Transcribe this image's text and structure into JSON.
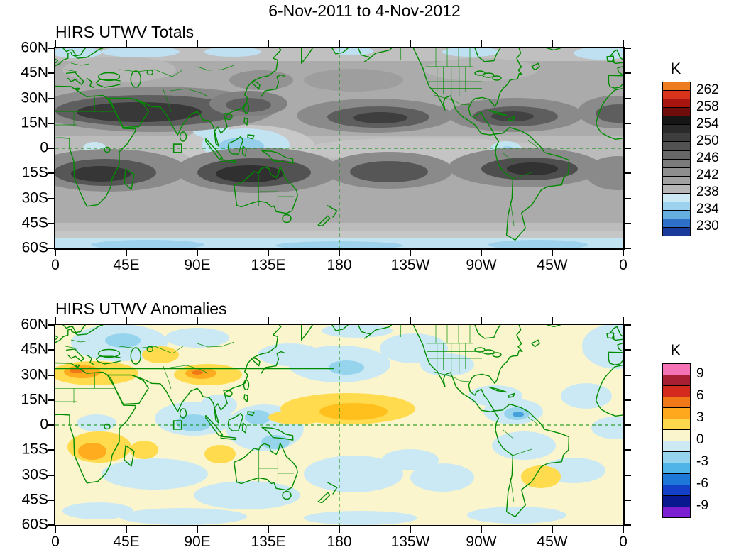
{
  "title": "6-Nov-2011 to 4-Nov-2012",
  "panels": [
    {
      "title": "HIRS UTWV Totals",
      "colorbar": {
        "unit": "K",
        "labels": [
          "262",
          "258",
          "254",
          "250",
          "246",
          "242",
          "238",
          "234",
          "230"
        ],
        "colors": [
          "#ED7C21",
          "#D8331B",
          "#A81410",
          "#6E0D0B",
          "#161616",
          "#2A2A2A",
          "#3E3E3E",
          "#525252",
          "#666666",
          "#7A7A7A",
          "#8E8E8E",
          "#A2A2A2",
          "#B6B6B6",
          "#CDE9F4",
          "#9CD2EE",
          "#64AEE0",
          "#2E6FC8",
          "#1A3A9C"
        ]
      }
    },
    {
      "title": "HIRS UTWV Anomalies",
      "colorbar": {
        "unit": "K",
        "labels": [
          "9",
          "6",
          "3",
          "0",
          "-3",
          "-6",
          "-9"
        ],
        "colors": [
          "#F473B4",
          "#A81E32",
          "#D42A1E",
          "#F07818",
          "#FFA81E",
          "#FFD84D",
          "#FAF5CC",
          "#CDEAF4",
          "#96D4EE",
          "#4FB4E8",
          "#1E78D8",
          "#1440C8",
          "#0A1890",
          "#7B1FD0"
        ]
      }
    }
  ],
  "axes": {
    "lat_labels": [
      "60N",
      "45N",
      "30N",
      "15N",
      "0",
      "15S",
      "30S",
      "45S",
      "60S"
    ],
    "lon_labels": [
      "0",
      "45E",
      "90E",
      "135E",
      "180",
      "135W",
      "90W",
      "45W",
      "0"
    ]
  },
  "style": {
    "coastline_color": "#008C00",
    "background_totals": "#ABABAB",
    "background_anomalies": "#FAF5CC"
  },
  "chart_data": [
    {
      "type": "heatmap",
      "title": "HIRS UTWV Totals",
      "subtitle": "6-Nov-2011 to 4-Nov-2012",
      "units": "K",
      "projection": "equirectangular world map, longitude 0 eastward through 180 back to 0, latitude 60N to 60S",
      "x_ticks": [
        "0",
        "45E",
        "90E",
        "135E",
        "180",
        "135W",
        "90W",
        "45W",
        "0"
      ],
      "y_ticks": [
        "60N",
        "45N",
        "30N",
        "15N",
        "0",
        "15S",
        "30S",
        "45S",
        "60S"
      ],
      "colorbar_levels_labeled": [
        262,
        258,
        254,
        250,
        246,
        242,
        238,
        234,
        230
      ],
      "colorbar_step": 2,
      "value_range": [
        228,
        264
      ],
      "legend_position": "right",
      "grid": "dashed green equator line and dashed green 180 meridian; green coastlines and borders; small green box near 77E on the equator",
      "features": [
        "Dark gray subtropical maximum (~250-254 K) over North Africa, Arabia and South Asia near 10-30N",
        "Dark subtropical bands over the central North Pacific and the North Atlantic/Caribbean near 15-30N",
        "Darkest southern band (~252-254 K) over southern Africa, the southern Indian Ocean and Australia near 10-30S",
        "Dark bands over the subtropical South Pacific and South America / South Atlantic near 10-30S",
        "Light gray to light blue minimum (~234-238 K) along the equator over the Maritime Continent and western Pacific",
        "Small light blue minimum over northwestern South America near the equator",
        "Light blue band (~236-238 K) along 55-60S and scattered light blue patches along 60N",
        "Mid grays (~244-248 K) over the remaining midlatitude oceans"
      ]
    },
    {
      "type": "heatmap",
      "title": "HIRS UTWV Anomalies",
      "subtitle": "6-Nov-2011 to 4-Nov-2012",
      "units": "K",
      "projection": "equirectangular world map, longitude 0 eastward through 180 back to 0, latitude 60N to 60S",
      "x_ticks": [
        "0",
        "45E",
        "90E",
        "135E",
        "180",
        "135W",
        "90W",
        "45W",
        "0"
      ],
      "y_ticks": [
        "60N",
        "45N",
        "30N",
        "15N",
        "0",
        "15S",
        "30S",
        "45S",
        "60S"
      ],
      "colorbar_levels_labeled": [
        9,
        6,
        3,
        0,
        -3,
        -6,
        -9
      ],
      "colorbar_step": 1.5,
      "value_range": [
        -10.5,
        10.5
      ],
      "legend_position": "right",
      "grid": "dashed green equator line and dashed green 180 meridian; solid green line near 34N from 0 to ~175E; green coastlines; small green box near 77E on the equator",
      "features": [
        "Weak positive background (0 to +1.5 K, cream) over most of the globe",
        "Positive anomalies +1.5 to +4 K over northwest Africa and the Sahara near 25-38N",
        "Positive anomalies +1.5 to +4 K over the Tibetan Plateau / central Asia with amber core near 85-100E",
        "Positive anomaly band +1.5 to +4 K over the equatorial central Pacific near 0-15N, 160E-140W",
        "Positive anomalies over southern Africa (amber core ~15-25E, 10-20S), Madagascar region and western Australia",
        "Positive anomalies over Argentina near 35-45S",
        "Negative anomalies -1.5 to -4 K over northern South America and the southwest Caribbean with a deep blue core near 72W, 4N",
        "Negative anomalies -1.5 to -3 K over the North Pacific, eastern Europe / western Russia and the northeast Atlantic",
        "Negative anomalies over the Indian Ocean south of India and the Maritime Continent",
        "Scattered negative anomalies over southern midlatitude oceans and along 55-60S"
      ]
    }
  ]
}
